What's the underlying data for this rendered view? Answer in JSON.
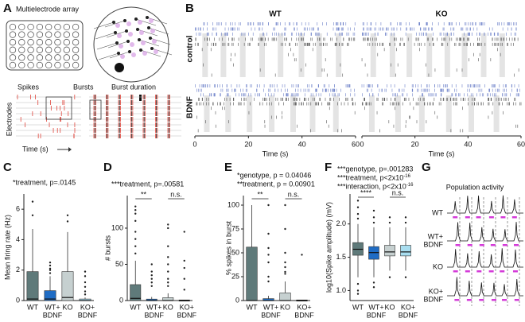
{
  "groups": [
    {
      "label": [
        "WT"
      ],
      "color": "#5f7a7a"
    },
    {
      "label": [
        "WT+",
        "BDNF"
      ],
      "color": "#1f6cc4"
    },
    {
      "label": [
        "KO"
      ],
      "color": "#c6d0d0"
    },
    {
      "label": [
        "KO+",
        "BDNF"
      ],
      "color": "#a9def0"
    }
  ],
  "panels": {
    "A": {
      "letter": "A",
      "title": "Multielectrode array",
      "spikes": "Spikes",
      "bursts": "Bursts",
      "burst_duration": "Burst duration",
      "ylabel": "Electrodes",
      "xlabel": "Time (s)"
    },
    "B": {
      "letter": "B",
      "columns": [
        "WT",
        "KO"
      ],
      "rows": [
        "control",
        "BDNF"
      ],
      "xlabel": "Time (s)",
      "xlim": [
        0,
        60
      ],
      "xticks": [
        0,
        20,
        40,
        60
      ]
    },
    "C": {
      "letter": "C",
      "stats": [
        "*treatment, p=.0145"
      ],
      "ylabel": "Mean firing rate (Hz)",
      "ylim": [
        0,
        7
      ],
      "yticks": [
        0,
        2,
        4,
        6
      ],
      "sig": [],
      "boxes": [
        {
          "min": 0,
          "q1": 0,
          "median": 0.1,
          "q3": 1.9,
          "max": 4.7,
          "outliers": [
            6.5,
            5.6
          ]
        },
        {
          "min": 0,
          "q1": 0,
          "median": 0.1,
          "q3": 0.65,
          "max": 1.6,
          "outliers": [
            2.5,
            2.3,
            2.1,
            2.0,
            1.8
          ]
        },
        {
          "min": 0,
          "q1": 0,
          "median": 0.2,
          "q3": 1.9,
          "max": 4.5,
          "outliers": [
            5.6,
            5.2
          ]
        },
        {
          "min": 0,
          "q1": 0,
          "median": 0,
          "q3": 0.1,
          "max": 0.2,
          "outliers": [
            1.9,
            1.6,
            1.2,
            0.9,
            0.6,
            0.4
          ]
        }
      ]
    },
    "D": {
      "letter": "D",
      "stats": [
        "***treatment, p=.00581"
      ],
      "ylabel": "# bursts",
      "ylim": [
        0,
        145
      ],
      "yticks": [
        0,
        50,
        100
      ],
      "sig": [
        "**",
        "n.s."
      ],
      "boxes": [
        {
          "min": 0,
          "q1": 0,
          "median": 3,
          "q3": 22,
          "max": 55,
          "outliers": [
            130,
            125,
            120,
            110,
            95,
            85,
            75,
            65
          ]
        },
        {
          "min": 0,
          "q1": 0,
          "median": 0,
          "q3": 2,
          "max": 5,
          "outliers": [
            50,
            40,
            35,
            30,
            25,
            20
          ]
        },
        {
          "min": 0,
          "q1": 0,
          "median": 0,
          "q3": 4,
          "max": 10,
          "outliers": [
            105,
            100,
            75,
            60,
            50,
            40,
            30,
            25,
            20
          ]
        },
        {
          "min": 0,
          "q1": 0,
          "median": 0,
          "q3": 0,
          "max": 0,
          "outliers": [
            95,
            55,
            45,
            30,
            15
          ]
        }
      ]
    },
    "E": {
      "letter": "E",
      "stats": [
        "*genotype, p = 0.04046",
        "**treatment, p = 0.00901"
      ],
      "ylabel": "% spikes in burst",
      "ylim": [
        0,
        110
      ],
      "yticks": [
        0,
        25,
        50,
        75,
        100
      ],
      "sig": [
        "**",
        "n.s."
      ],
      "boxes": [
        {
          "min": 0,
          "q1": 0,
          "median": 0,
          "q3": 56,
          "max": 100,
          "outliers": []
        },
        {
          "min": 0,
          "q1": 0,
          "median": 0,
          "q3": 2,
          "max": 5,
          "outliers": [
            100,
            70,
            55,
            48,
            40,
            25,
            20
          ]
        },
        {
          "min": 0,
          "q1": 0,
          "median": 0,
          "q3": 8,
          "max": 20,
          "outliers": [
            100,
            75,
            50,
            40,
            35,
            30,
            28
          ]
        },
        {
          "min": 0,
          "q1": 0,
          "median": 0,
          "q3": 0,
          "max": 0,
          "outliers": [
            48
          ]
        }
      ]
    },
    "F": {
      "letter": "F",
      "stats": [
        {
          "text": "***genotype, p=.001283"
        },
        {
          "text": "***treatment, p<2x10",
          "sup": "-16"
        },
        {
          "text": "***interaction, p<2x10",
          "sup": "-16"
        }
      ],
      "ylabel": "log10(Spike amplitude) (mV)",
      "ylim": [
        0.85,
        2.45
      ],
      "yticks": [
        {
          "value": 1,
          "label": "1.0"
        },
        1.5,
        {
          "value": 2,
          "label": "2.0"
        }
      ],
      "sig": [
        "****",
        "n.s."
      ],
      "boxes": [
        {
          "min": 1.2,
          "q1": 1.53,
          "median": 1.62,
          "q3": 1.72,
          "max": 2.0,
          "outliers": [
            2.35,
            2.25,
            2.15,
            2.08,
            1.1,
            1.0,
            0.95
          ]
        },
        {
          "min": 1.2,
          "q1": 1.47,
          "median": 1.57,
          "q3": 1.66,
          "max": 1.95,
          "outliers": [
            2.2,
            2.1,
            2.02,
            1.12,
            1.05
          ]
        },
        {
          "min": 1.3,
          "q1": 1.52,
          "median": 1.58,
          "q3": 1.68,
          "max": 1.95,
          "outliers": [
            2.1,
            2.02,
            1.2
          ]
        },
        {
          "min": 1.3,
          "q1": 1.52,
          "median": 1.58,
          "q3": 1.68,
          "max": 1.95,
          "outliers": [
            2.1,
            2.02,
            1.2
          ]
        }
      ]
    },
    "G": {
      "letter": "G",
      "title": "Population activity",
      "rows": [
        [
          "WT"
        ],
        [
          "WT+",
          "BDNF"
        ],
        [
          "KO"
        ],
        [
          "KO+",
          "BDNF"
        ]
      ]
    }
  }
}
